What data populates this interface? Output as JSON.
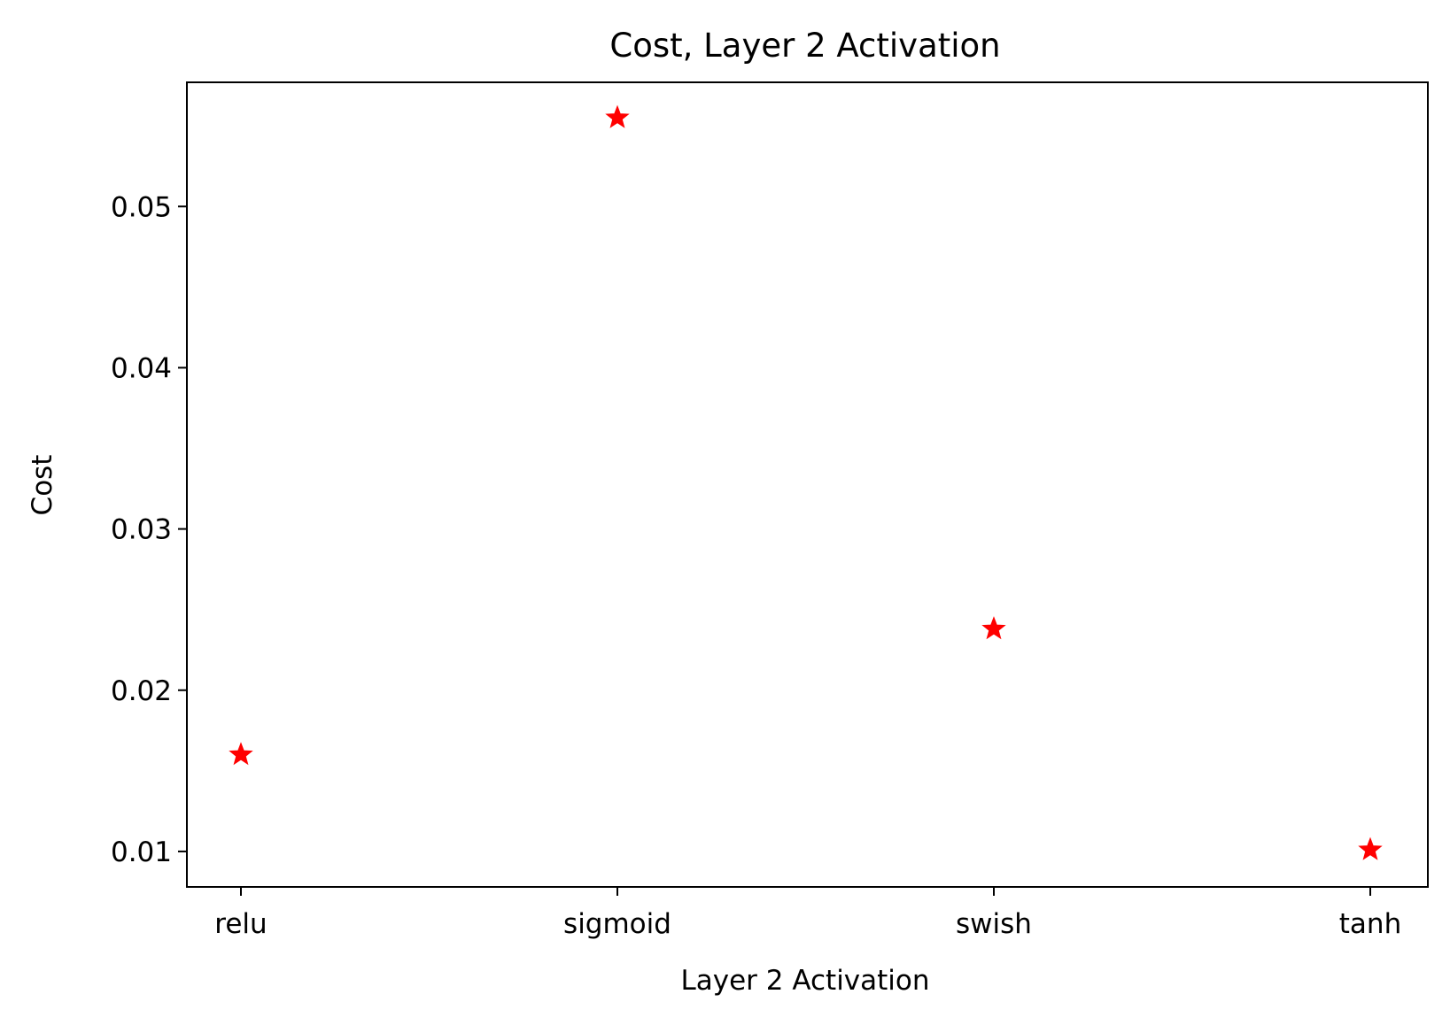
{
  "chart_data": {
    "type": "scatter",
    "title": "Cost, Layer 2 Activation",
    "xlabel": "Layer 2 Activation",
    "ylabel": "Cost",
    "categories": [
      "relu",
      "sigmoid",
      "swish",
      "tanh"
    ],
    "series": [
      {
        "values": [
          0.016,
          0.0555,
          0.0238,
          0.0101
        ],
        "color": "#ff0000",
        "marker": "star"
      }
    ],
    "ylim": [
      0.0078,
      0.0577
    ],
    "yticks": [
      {
        "value": 0.01,
        "label": "0.01"
      },
      {
        "value": 0.02,
        "label": "0.02"
      },
      {
        "value": 0.03,
        "label": "0.03"
      },
      {
        "value": 0.04,
        "label": "0.04"
      },
      {
        "value": 0.05,
        "label": "0.05"
      }
    ],
    "grid": false,
    "legend": "none"
  }
}
